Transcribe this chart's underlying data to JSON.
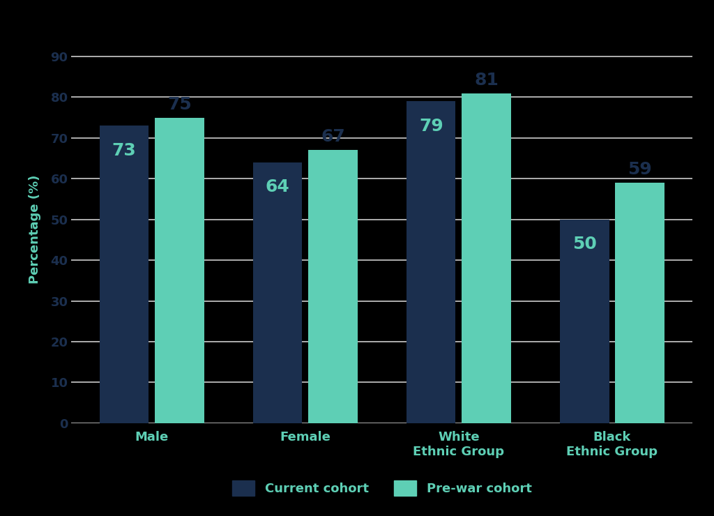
{
  "categories": [
    "Male",
    "Female",
    "White\nEthnic Group",
    "Black\nEthnic Group"
  ],
  "series1_label": "Current cohort",
  "series2_label": "Pre-war cohort",
  "series1_values": [
    73,
    64,
    79,
    50
  ],
  "series2_values": [
    75,
    67,
    81,
    59
  ],
  "series1_color": "#1b2f4e",
  "series2_color": "#5ecfb5",
  "ylabel": "Percentage (%)",
  "ylim": [
    0,
    95
  ],
  "yticks": [
    0,
    10,
    20,
    30,
    40,
    50,
    60,
    70,
    80,
    90
  ],
  "background_color": "#000000",
  "plot_bg_color": "#000000",
  "grid_color": "#cccccc",
  "text_color_navy": "#1b2f4e",
  "text_color_teal": "#5ecfb5",
  "text_color_ytick": "#1b2f4e",
  "bar_value_fontsize": 18,
  "label_fontsize": 13,
  "ylabel_fontsize": 13,
  "legend_fontsize": 13,
  "bar_width": 0.32,
  "bar_gap": 0.04
}
